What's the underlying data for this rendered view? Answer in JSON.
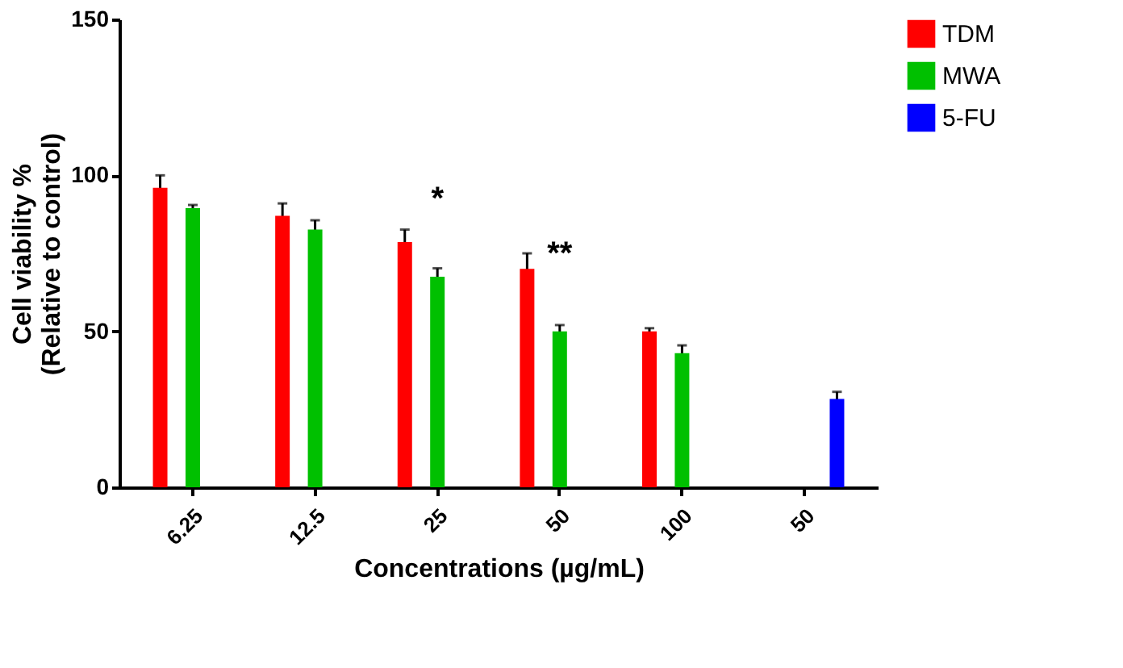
{
  "chart_data": {
    "type": "bar",
    "xlabel": "Concentrations (µg/mL)",
    "ylabel": "Cell viability %\n(Relative to control)",
    "categories": [
      "6.25",
      "12.5",
      "25",
      "50",
      "100",
      "50"
    ],
    "series": [
      {
        "name": "TDM",
        "color": "#ff0000",
        "values": [
          96,
          87,
          78.6,
          70,
          50,
          null
        ],
        "errors": [
          4,
          4,
          4,
          5,
          1,
          null
        ]
      },
      {
        "name": "MWA",
        "color": "#00c000",
        "values": [
          89.5,
          82.6,
          67.5,
          50,
          43,
          null
        ],
        "errors": [
          1,
          3,
          2.7,
          2,
          2.5,
          null
        ]
      },
      {
        "name": "5-FU",
        "color": "#0000ff",
        "values": [
          null,
          null,
          null,
          null,
          null,
          28.3
        ],
        "errors": [
          null,
          null,
          null,
          null,
          null,
          2.3
        ]
      }
    ],
    "annotations": [
      {
        "text": "*",
        "x": "25",
        "y": 67.5
      },
      {
        "text": "**",
        "x": "50",
        "y": 50
      }
    ],
    "ylim": [
      0,
      150
    ],
    "yticks": [
      0,
      50,
      100,
      150
    ],
    "grid": false,
    "legend": "top right"
  }
}
